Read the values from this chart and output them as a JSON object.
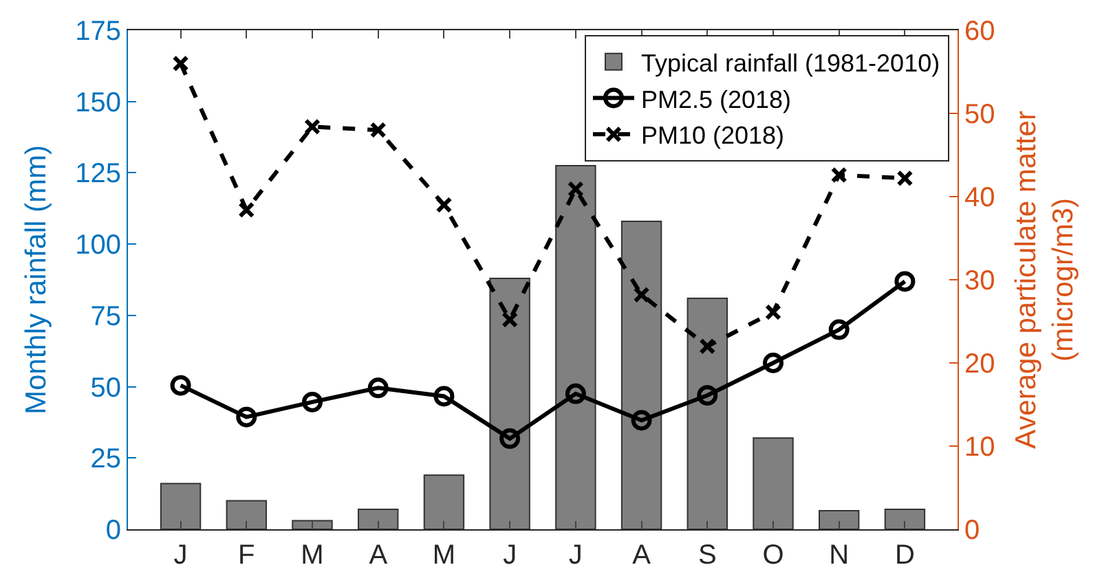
{
  "chart_data": {
    "type": "bar",
    "categories": [
      "J",
      "F",
      "M",
      "A",
      "M",
      "J",
      "J",
      "A",
      "S",
      "O",
      "N",
      "D"
    ],
    "ylabel": "Monthly rainfall (mm)",
    "y2label": "Average particulate matter\n(microgr/m3)",
    "ylim": [
      0,
      175
    ],
    "yticks": [
      0,
      25,
      50,
      75,
      100,
      125,
      150,
      175
    ],
    "y2lim": [
      0,
      60
    ],
    "y2ticks": [
      0,
      10,
      20,
      30,
      40,
      50,
      60
    ],
    "legend": "top right",
    "series": [
      {
        "name": "Typical rainfall (1981-2010)",
        "color": "#808080",
        "values": [
          16,
          10,
          3,
          7,
          19,
          88,
          127.5,
          108,
          81,
          32,
          6.5,
          7
        ]
      },
      {
        "name": "PM2.5 (2018)",
        "type": "line",
        "axis": "y2",
        "color": "#000000",
        "marker": "circle",
        "line_style": "solid",
        "values": [
          17.3,
          13.5,
          15.3,
          17,
          16,
          10.9,
          16.3,
          13.1,
          16.1,
          20,
          24,
          29.8
        ]
      },
      {
        "name": "PM10 (2018)",
        "type": "line",
        "axis": "y2",
        "color": "#000000",
        "marker": "cross",
        "line_style": "dashed",
        "values": [
          56,
          38.4,
          48.4,
          48,
          39,
          25.2,
          40.9,
          28.2,
          22,
          26.1,
          42.6,
          42.2
        ]
      }
    ]
  }
}
